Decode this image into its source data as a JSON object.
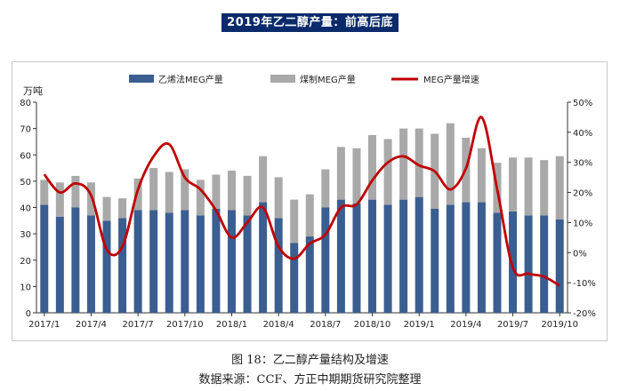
{
  "headline": "2019年乙二醇产量：前高后底",
  "figure_caption": "图 18：乙二醇产量结构及增速",
  "source_caption": "数据来源：CCF、方正中期期货研究院整理",
  "colors": {
    "ethylene": "#3b5e91",
    "coal": "#a9a9a9",
    "growth": "#c00000",
    "headline_bg": "#0a2a6b"
  },
  "chart_data": {
    "type": "bar",
    "stacked": true,
    "ylabel": "万吨",
    "ylim": [
      0,
      80
    ],
    "yticks": [
      0,
      10,
      20,
      30,
      40,
      50,
      60,
      70,
      80
    ],
    "y2lim": [
      -20,
      50
    ],
    "y2ticks": [
      "-20%",
      "-10%",
      "0%",
      "10%",
      "20%",
      "30%",
      "40%",
      "50%"
    ],
    "legend": [
      "乙烯法MEG产量",
      "煤制MEG产量",
      "MEG产量增速"
    ],
    "x_tick_labels": [
      "2017/1",
      "2017/4",
      "2017/7",
      "2017/10",
      "2018/1",
      "2018/4",
      "2018/7",
      "2018/10",
      "2019/1",
      "2019/4",
      "2019/7",
      "2019/10"
    ],
    "categories": [
      "2017/1",
      "2017/2",
      "2017/3",
      "2017/4",
      "2017/5",
      "2017/6",
      "2017/7",
      "2017/8",
      "2017/9",
      "2017/10",
      "2017/11",
      "2017/12",
      "2018/1",
      "2018/2",
      "2018/3",
      "2018/4",
      "2018/5",
      "2018/6",
      "2018/7",
      "2018/8",
      "2018/9",
      "2018/10",
      "2018/11",
      "2018/12",
      "2019/1",
      "2019/2",
      "2019/3",
      "2019/4",
      "2019/5",
      "2019/6",
      "2019/7",
      "2019/8",
      "2019/9",
      "2019/10"
    ],
    "series": [
      {
        "name": "乙烯法MEG产量",
        "kind": "bar",
        "values": [
          41,
          36.5,
          40,
          37,
          35,
          36,
          39,
          39,
          38,
          39,
          37,
          39.5,
          39,
          37,
          42,
          36,
          26.5,
          29,
          40,
          43,
          41.5,
          43,
          41,
          43,
          44,
          39.5,
          41,
          42,
          42,
          38,
          38.5,
          37,
          37,
          35.5
        ]
      },
      {
        "name": "煤制MEG产量",
        "kind": "bar",
        "values": [
          9.5,
          13,
          12,
          12.5,
          9,
          7.5,
          12,
          16,
          15.5,
          15.5,
          13.5,
          13,
          15,
          15,
          17.5,
          15.5,
          16.5,
          16,
          14.5,
          20,
          21,
          24.5,
          25,
          27,
          26,
          28.5,
          31,
          24.5,
          20.5,
          19,
          20.5,
          22,
          21,
          24
        ]
      },
      {
        "name": "MEG产量增速",
        "kind": "line",
        "axis": "right",
        "values": [
          26,
          20,
          23,
          19,
          1,
          2,
          21,
          32,
          36,
          25,
          21,
          14,
          5,
          10,
          15,
          2,
          -2,
          3,
          6,
          15,
          16,
          24,
          30,
          32,
          29,
          27,
          21,
          28,
          45,
          21,
          -5,
          -7,
          -8,
          -11
        ]
      }
    ]
  }
}
